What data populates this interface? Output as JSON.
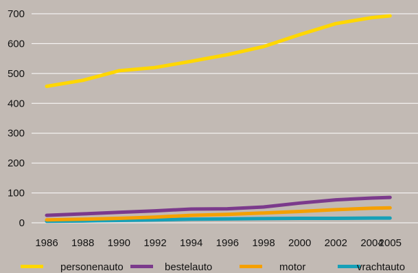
{
  "chart_data": {
    "type": "line",
    "title": "",
    "xlabel": "",
    "ylabel": "",
    "x": [
      1986,
      1988,
      1990,
      1992,
      1994,
      1996,
      1998,
      2000,
      2002,
      2004,
      2005
    ],
    "x_tick_labels": [
      "1986",
      "1988",
      "1990",
      "1992",
      "1994",
      "1996",
      "1998",
      "2000",
      "2002",
      "2004",
      "2005"
    ],
    "y_ticks": [
      0,
      100,
      200,
      300,
      400,
      500,
      600,
      700
    ],
    "ylim": [
      0,
      700
    ],
    "grid": "horizontal",
    "legend_position": "bottom",
    "series": [
      {
        "name": "personenauto",
        "color": "#ffd700",
        "values": [
          457,
          477,
          509,
          520,
          541,
          563,
          590,
          630,
          667,
          687,
          693
        ]
      },
      {
        "name": "bestelauto",
        "color": "#7b3a8c",
        "values": [
          25,
          30,
          35,
          40,
          46,
          47,
          53,
          66,
          77,
          83,
          85
        ]
      },
      {
        "name": "motor",
        "color": "#f5a000",
        "values": [
          10,
          12,
          15,
          19,
          25,
          28,
          33,
          38,
          44,
          49,
          50
        ]
      },
      {
        "name": "vrachtauto",
        "color": "#16a0b8",
        "values": [
          5,
          6,
          8,
          10,
          12,
          13,
          14,
          15,
          15,
          16,
          16
        ]
      }
    ]
  }
}
